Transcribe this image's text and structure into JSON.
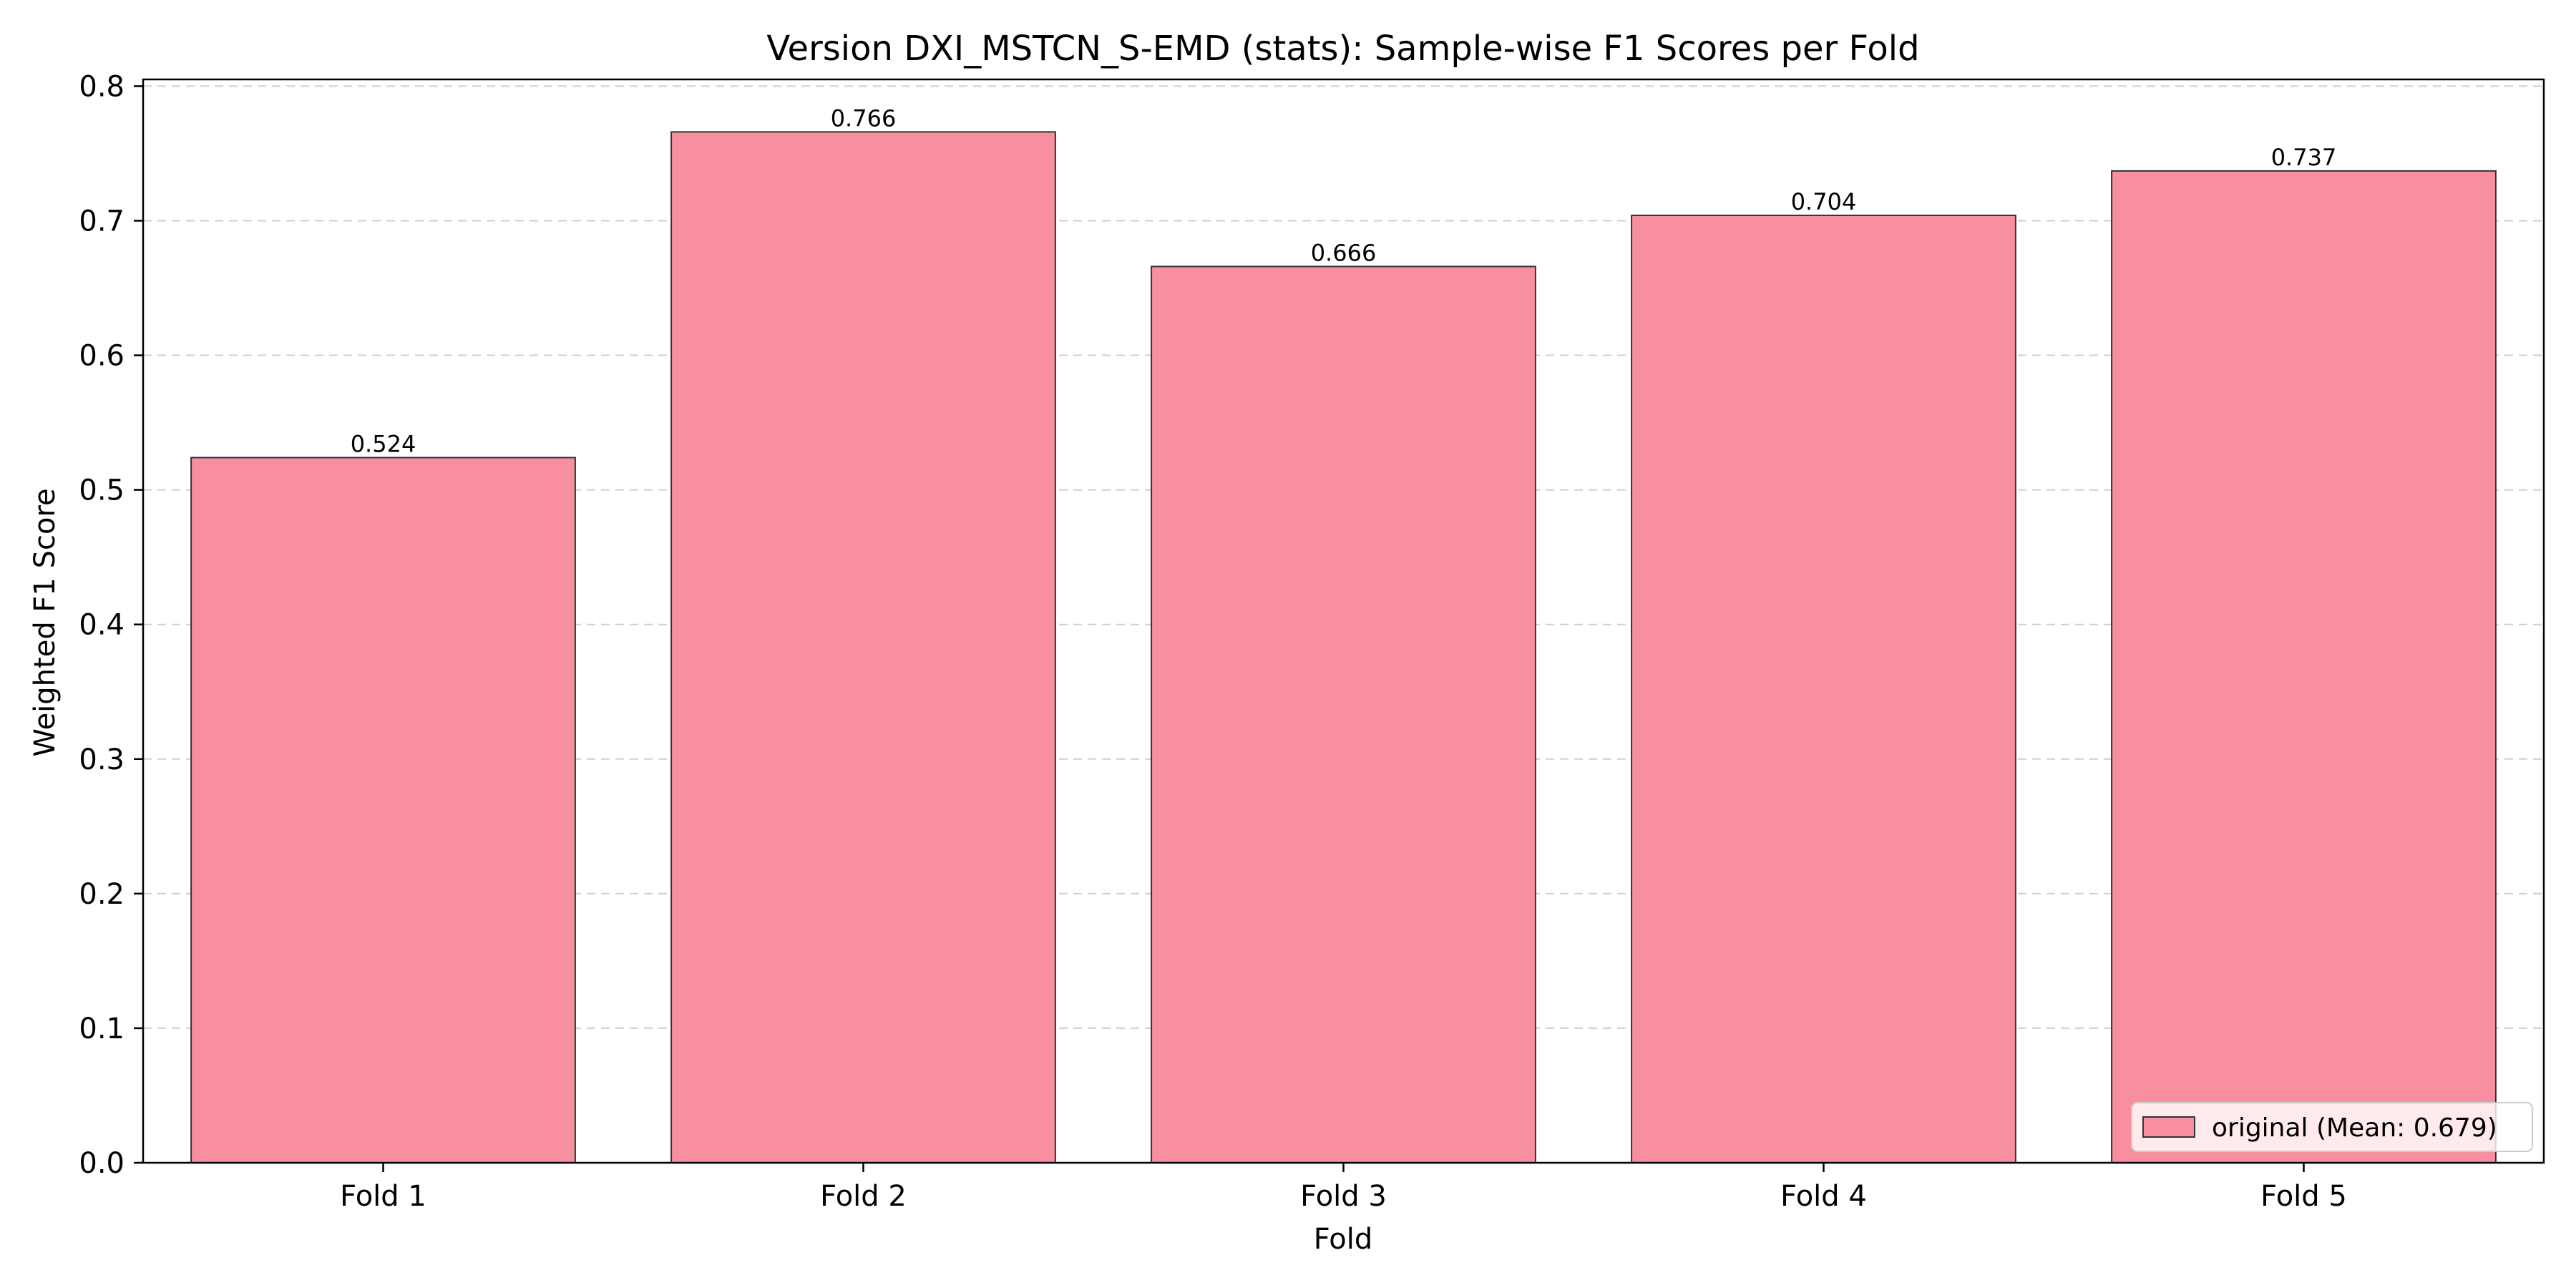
{
  "chart_data": {
    "type": "bar",
    "title": "Version DXI_MSTCN_S-EMD (stats): Sample-wise F1 Scores per Fold",
    "xlabel": "Fold",
    "ylabel": "Weighted F1 Score",
    "categories": [
      "Fold 1",
      "Fold 2",
      "Fold 3",
      "Fold 4",
      "Fold 5"
    ],
    "series": [
      {
        "name": "original (Mean: 0.679)",
        "values": [
          0.524,
          0.766,
          0.666,
          0.704,
          0.737
        ],
        "data_labels": [
          "0.524",
          "0.766",
          "0.666",
          "0.704",
          "0.737"
        ],
        "color": "#f78fa1",
        "edge_color": "#333333"
      }
    ],
    "ylim": [
      0,
      0.805
    ],
    "yticks": [
      0.0,
      0.1,
      0.2,
      0.3,
      0.4,
      0.5,
      0.6,
      0.7,
      0.8
    ],
    "ytick_labels": [
      "0.0",
      "0.1",
      "0.2",
      "0.3",
      "0.4",
      "0.5",
      "0.6",
      "0.7",
      "0.8"
    ],
    "grid": "y-dashed",
    "legend_position": "lower-right"
  }
}
